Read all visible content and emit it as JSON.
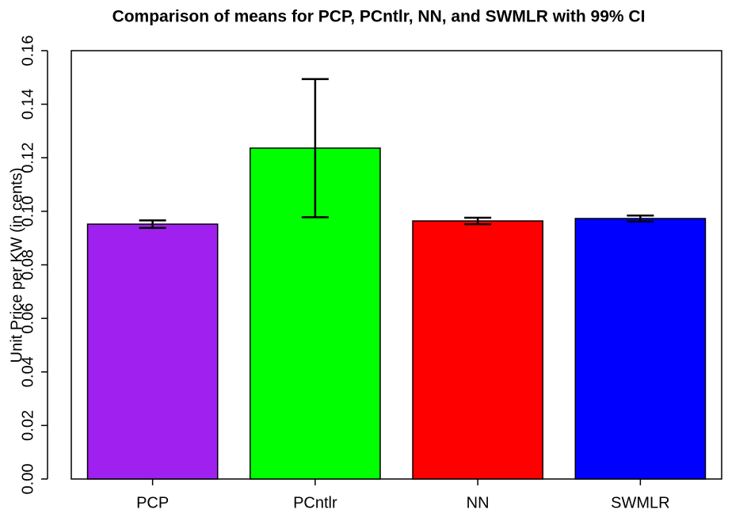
{
  "chart_data": {
    "type": "bar",
    "title": "Comparison of means for PCP, PCntlr, NN, and SWMLR with 99% CI",
    "y_label": "Unit Price  per KW (in cents)",
    "categories": [
      "PCP",
      "PCntlr",
      "NN",
      "SWMLR"
    ],
    "values": [
      0.0952,
      0.1236,
      0.0964,
      0.0973
    ],
    "errors": [
      0.0014,
      0.0258,
      0.0012,
      0.0011
    ],
    "colors": [
      "#a020f0",
      "#00ff00",
      "#ff0000",
      "#0000ff"
    ],
    "ylim": [
      0,
      0.16
    ],
    "yticks": [
      {
        "value": 0,
        "label": "0.00"
      },
      {
        "value": 0.02,
        "label": "0.02"
      },
      {
        "value": 0.04,
        "label": "0.04"
      },
      {
        "value": 0.06,
        "label": "0.06"
      },
      {
        "value": 0.08,
        "label": "0.08"
      },
      {
        "value": 0.1,
        "label": "0.10"
      },
      {
        "value": 0.12,
        "label": "0.12"
      },
      {
        "value": 0.14,
        "label": "0.14"
      },
      {
        "value": 0.16,
        "label": "0.16"
      }
    ]
  }
}
